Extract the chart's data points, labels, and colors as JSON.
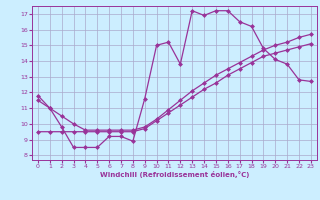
{
  "xlabel": "Windchill (Refroidissement éolien,°C)",
  "bg_color": "#cceeff",
  "grid_color": "#aaaacc",
  "line_color": "#993399",
  "xlim": [
    -0.5,
    23.5
  ],
  "ylim": [
    7.7,
    17.5
  ],
  "xticks": [
    0,
    1,
    2,
    3,
    4,
    5,
    6,
    7,
    8,
    9,
    10,
    11,
    12,
    13,
    14,
    15,
    16,
    17,
    18,
    19,
    20,
    21,
    22,
    23
  ],
  "yticks": [
    8,
    9,
    10,
    11,
    12,
    13,
    14,
    15,
    16,
    17
  ],
  "curve1_x": [
    0,
    1,
    2,
    3,
    4,
    5,
    6,
    7,
    8,
    9,
    10,
    11,
    12,
    13,
    14,
    15,
    16,
    17,
    18,
    19,
    20,
    21,
    22,
    23
  ],
  "curve1_y": [
    11.8,
    11.0,
    9.8,
    8.5,
    8.5,
    8.5,
    9.2,
    9.2,
    8.9,
    11.6,
    15.0,
    15.2,
    13.8,
    17.2,
    16.9,
    17.2,
    17.2,
    16.5,
    16.2,
    14.8,
    14.1,
    13.8,
    12.8,
    12.7
  ],
  "curve2_x": [
    0,
    1,
    2,
    3,
    4,
    5,
    6,
    7,
    8,
    9,
    10,
    11,
    12,
    13,
    14,
    15,
    16,
    17,
    18,
    19,
    20,
    21,
    22,
    23
  ],
  "curve2_y": [
    9.5,
    9.5,
    9.5,
    9.5,
    9.5,
    9.5,
    9.5,
    9.5,
    9.5,
    9.7,
    10.2,
    10.7,
    11.2,
    11.7,
    12.2,
    12.6,
    13.1,
    13.5,
    13.9,
    14.3,
    14.5,
    14.7,
    14.9,
    15.1
  ],
  "curve3_x": [
    0,
    1,
    2,
    3,
    4,
    5,
    6,
    7,
    8,
    9,
    10,
    11,
    12,
    13,
    14,
    15,
    16,
    17,
    18,
    19,
    20,
    21,
    22,
    23
  ],
  "curve3_y": [
    11.5,
    11.0,
    10.5,
    10.0,
    9.6,
    9.6,
    9.6,
    9.6,
    9.6,
    9.8,
    10.3,
    10.9,
    11.5,
    12.1,
    12.6,
    13.1,
    13.5,
    13.9,
    14.3,
    14.7,
    15.0,
    15.2,
    15.5,
    15.7
  ]
}
